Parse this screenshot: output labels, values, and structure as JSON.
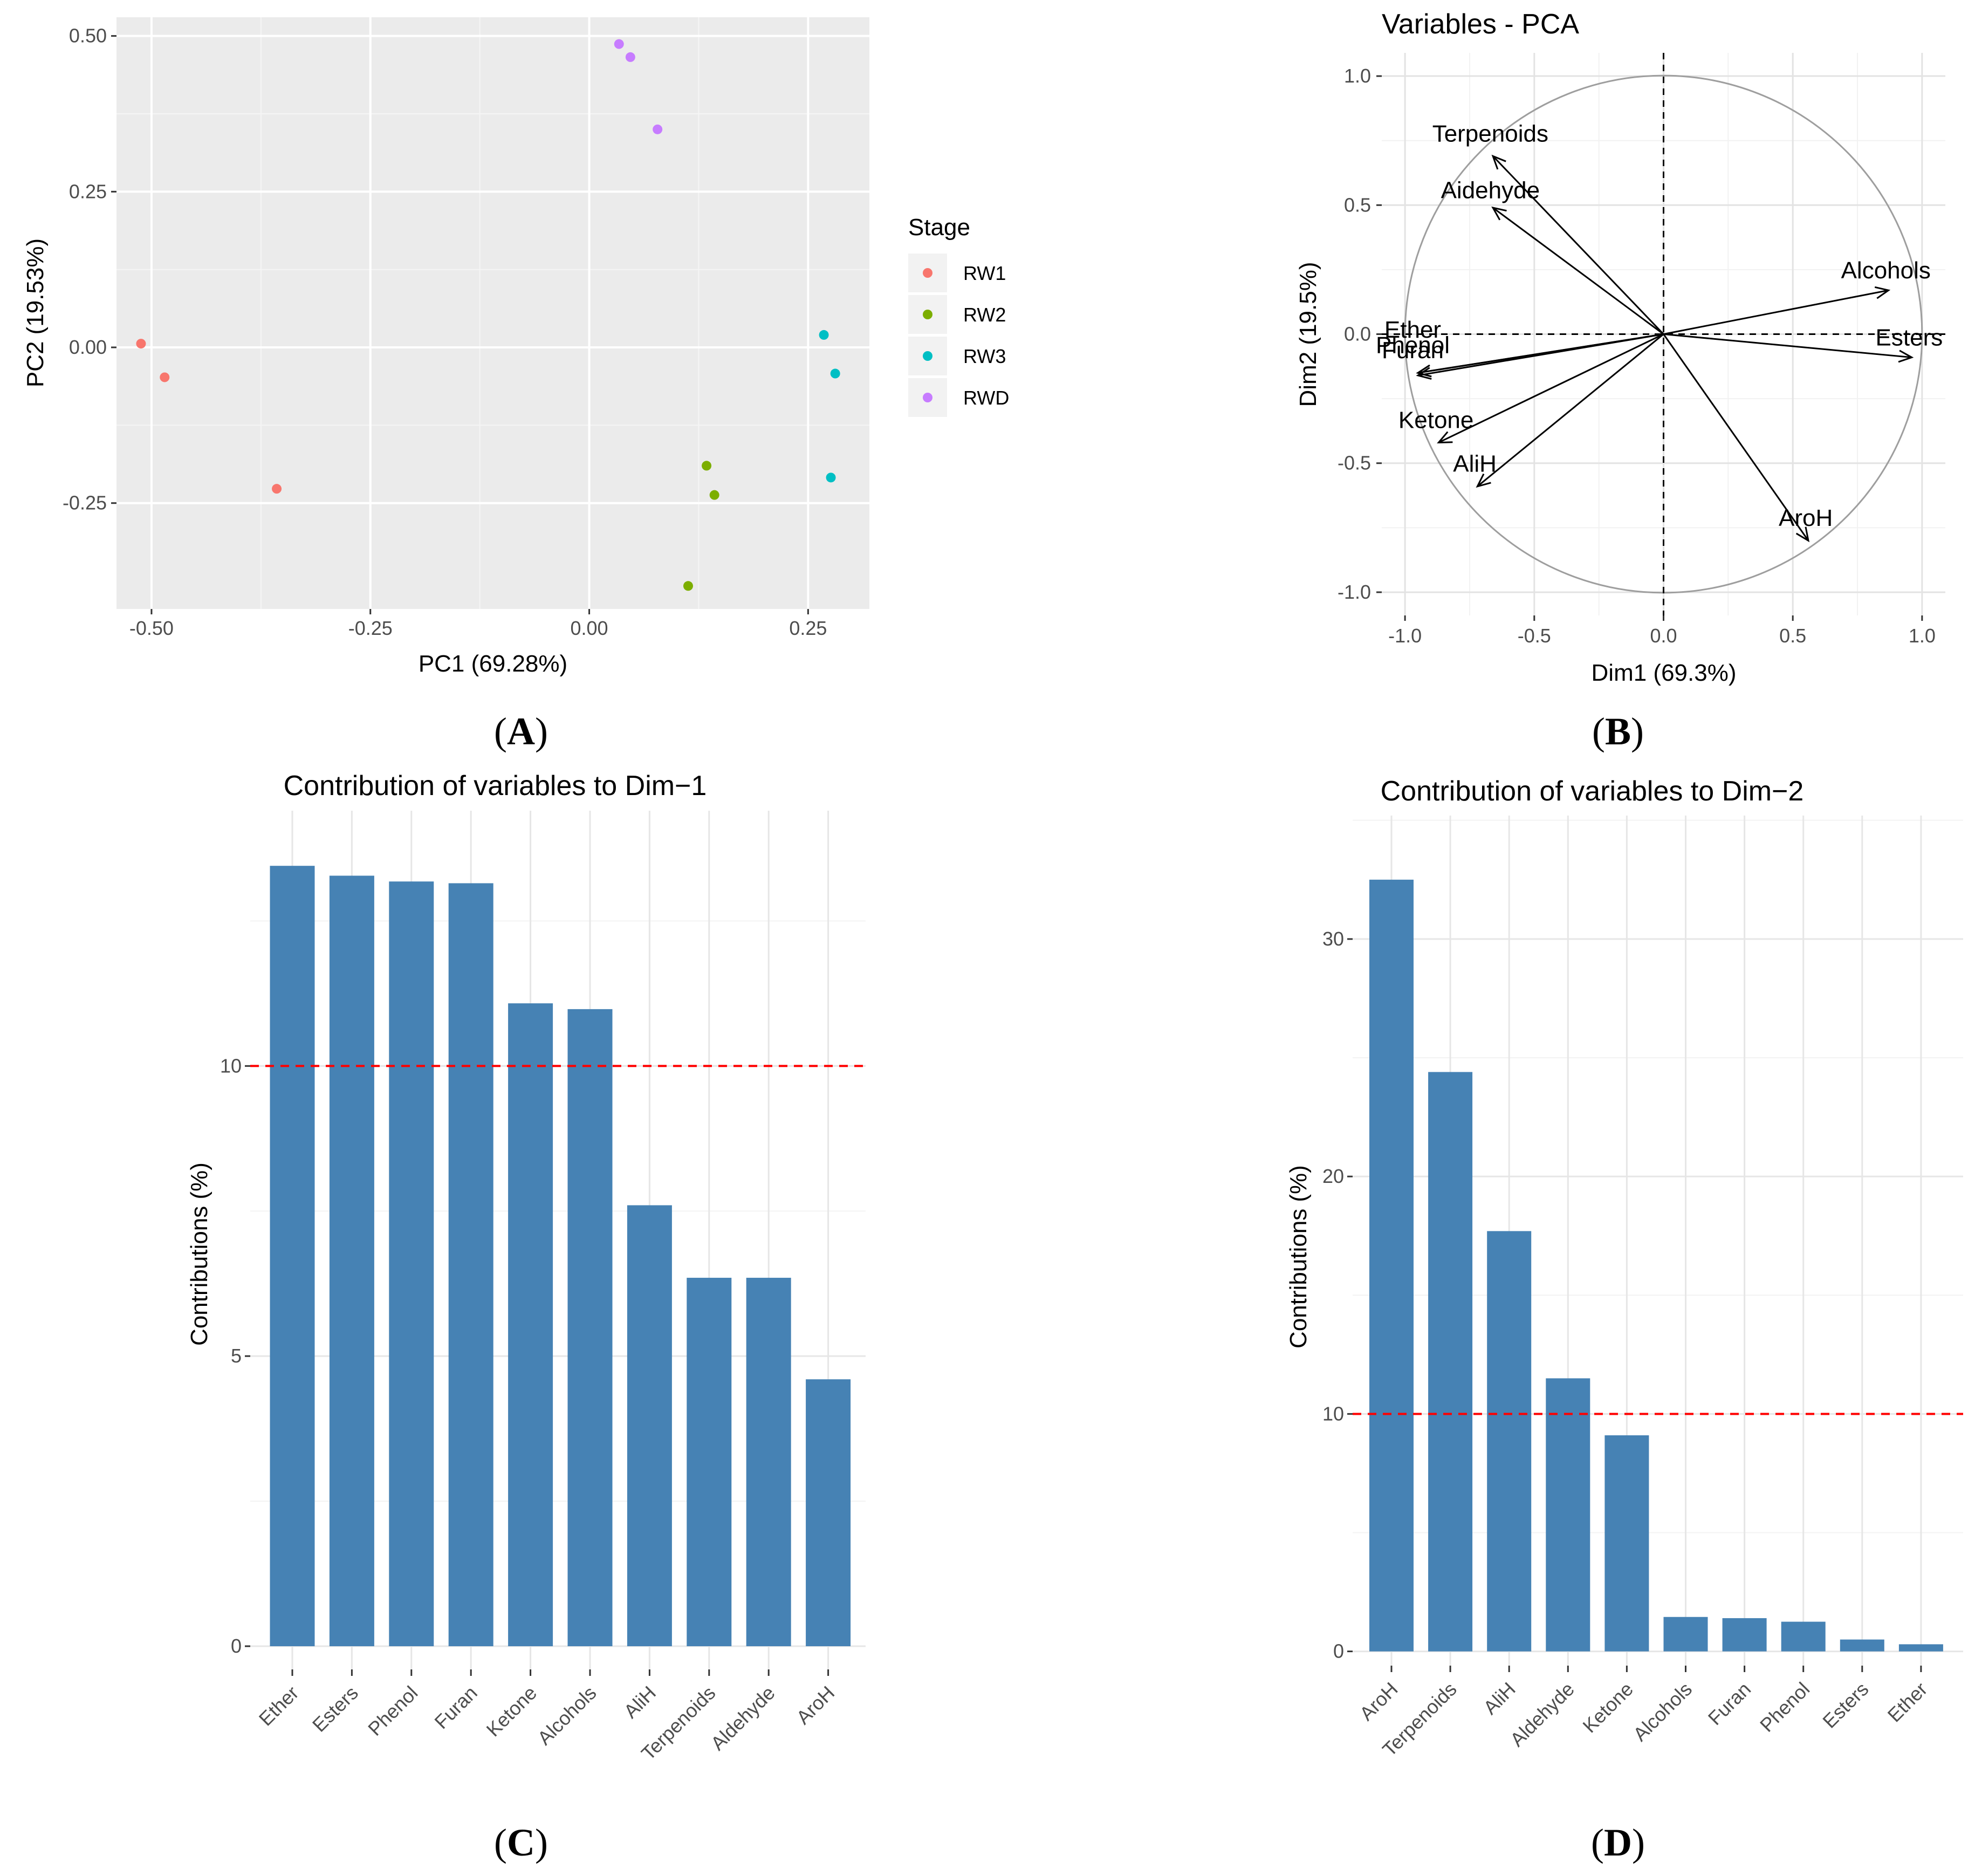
{
  "panel_labels": [
    "A",
    "B",
    "C",
    "D"
  ],
  "colors": {
    "RW1": "#F8766D",
    "RW2": "#7CAE00",
    "RW3": "#00BFC4",
    "RWD": "#C77CFF",
    "bar": "#4682B4",
    "refline": "#FF0000"
  },
  "chart_data": [
    {
      "type": "scatter",
      "title": "",
      "xlabel": "PC1 (69.28%)",
      "ylabel": "PC2 (19.53%)",
      "xlim": [
        -0.54,
        0.32
      ],
      "ylim": [
        -0.42,
        0.53
      ],
      "xticks": [
        -0.5,
        -0.25,
        0.0,
        0.25
      ],
      "xtick_labels": [
        "-0.50",
        "-0.25",
        "0.00",
        "0.25"
      ],
      "yticks": [
        -0.25,
        0.0,
        0.25,
        0.5
      ],
      "ytick_labels": [
        "-0.25",
        "0.00",
        "0.25",
        "0.50"
      ],
      "grid": true,
      "legend": {
        "title": "Stage",
        "placement": "right",
        "entries": [
          "RW1",
          "RW2",
          "RW3",
          "RWD"
        ]
      },
      "series": [
        {
          "name": "RW1",
          "points": [
            [
              -0.512,
              0.006
            ],
            [
              -0.485,
              -0.048
            ],
            [
              -0.357,
              -0.227
            ]
          ]
        },
        {
          "name": "RW2",
          "points": [
            [
              0.134,
              -0.19
            ],
            [
              0.143,
              -0.237
            ],
            [
              0.113,
              -0.383
            ]
          ]
        },
        {
          "name": "RW3",
          "points": [
            [
              0.268,
              0.02
            ],
            [
              0.281,
              -0.042
            ],
            [
              0.276,
              -0.209
            ]
          ]
        },
        {
          "name": "RWD",
          "points": [
            [
              0.034,
              0.487
            ],
            [
              0.047,
              0.466
            ],
            [
              0.078,
              0.35
            ]
          ]
        }
      ]
    },
    {
      "type": "scatter",
      "subtype": "correlation-circle",
      "title": "Variables - PCA",
      "xlabel": "Dim1 (69.3%)",
      "ylabel": "Dim2 (19.5%)",
      "xlim": [
        -1.09,
        1.09
      ],
      "ylim": [
        -1.09,
        1.09
      ],
      "xticks": [
        -1.0,
        -0.5,
        0.0,
        0.5,
        1.0
      ],
      "xtick_labels": [
        "-1.0",
        "-0.5",
        "0.0",
        "0.5",
        "1.0"
      ],
      "yticks": [
        -1.0,
        -0.5,
        0.0,
        0.5,
        1.0
      ],
      "ytick_labels": [
        "-1.0",
        "-0.5",
        "0.0",
        "0.5",
        "1.0"
      ],
      "grid": true,
      "variables": [
        {
          "name": "Terpenoids",
          "x": -0.66,
          "y": 0.69,
          "label_x": -0.67,
          "label_y": 0.78
        },
        {
          "name": "Aidehyde",
          "x": -0.66,
          "y": 0.49,
          "label_x": -0.67,
          "label_y": 0.56
        },
        {
          "name": "Alcohols",
          "x": 0.87,
          "y": 0.17,
          "label_x": 0.86,
          "label_y": 0.25
        },
        {
          "name": "Esters",
          "x": 0.96,
          "y": -0.09,
          "label_x": 0.95,
          "label_y": -0.01
        },
        {
          "name": "Ether",
          "x": -0.95,
          "y": -0.15,
          "label_x": -0.97,
          "label_y": 0.02
        },
        {
          "name": "Phenol",
          "x": -0.95,
          "y": -0.15,
          "label_x": -0.97,
          "label_y": -0.04
        },
        {
          "name": "Furan",
          "x": -0.95,
          "y": -0.16,
          "label_x": -0.97,
          "label_y": -0.06
        },
        {
          "name": "Ketone",
          "x": -0.87,
          "y": -0.42,
          "label_x": -0.88,
          "label_y": -0.33
        },
        {
          "name": "AliH",
          "x": -0.72,
          "y": -0.59,
          "label_x": -0.73,
          "label_y": -0.5
        },
        {
          "name": "AroH",
          "x": 0.56,
          "y": -0.8,
          "label_x": 0.55,
          "label_y": -0.71
        }
      ]
    },
    {
      "type": "bar",
      "title": "Contribution of variables to Dim−1",
      "xlabel": "",
      "ylabel": "Contributions (%)",
      "ylim": [
        -0.4,
        14.4
      ],
      "yticks": [
        0,
        5,
        10
      ],
      "ytick_labels": [
        "0",
        "5",
        "10"
      ],
      "reference_line": 10,
      "categories": [
        "Ether",
        "Esters",
        "Phenol",
        "Furan",
        "Ketone",
        "Alcohols",
        "AliH",
        "Terpenoids",
        "Aldehyde",
        "AroH"
      ],
      "values": [
        13.45,
        13.28,
        13.18,
        13.15,
        11.08,
        10.98,
        7.6,
        6.35,
        6.35,
        4.6
      ]
    },
    {
      "type": "bar",
      "title": "Contribution of variables to Dim−2",
      "xlabel": "",
      "ylabel": "Contributions (%)",
      "ylim": [
        -0.6,
        35.2
      ],
      "yticks": [
        0,
        10,
        20,
        30
      ],
      "ytick_labels": [
        "0",
        "10",
        "20",
        "30"
      ],
      "reference_line": 10,
      "categories": [
        "AroH",
        "Terpenoids",
        "AliH",
        "Aldehyde",
        "Ketone",
        "Alcohols",
        "Furan",
        "Phenol",
        "Esters",
        "Ether"
      ],
      "values": [
        32.5,
        24.4,
        17.7,
        11.5,
        9.1,
        1.45,
        1.4,
        1.25,
        0.5,
        0.3
      ]
    }
  ]
}
